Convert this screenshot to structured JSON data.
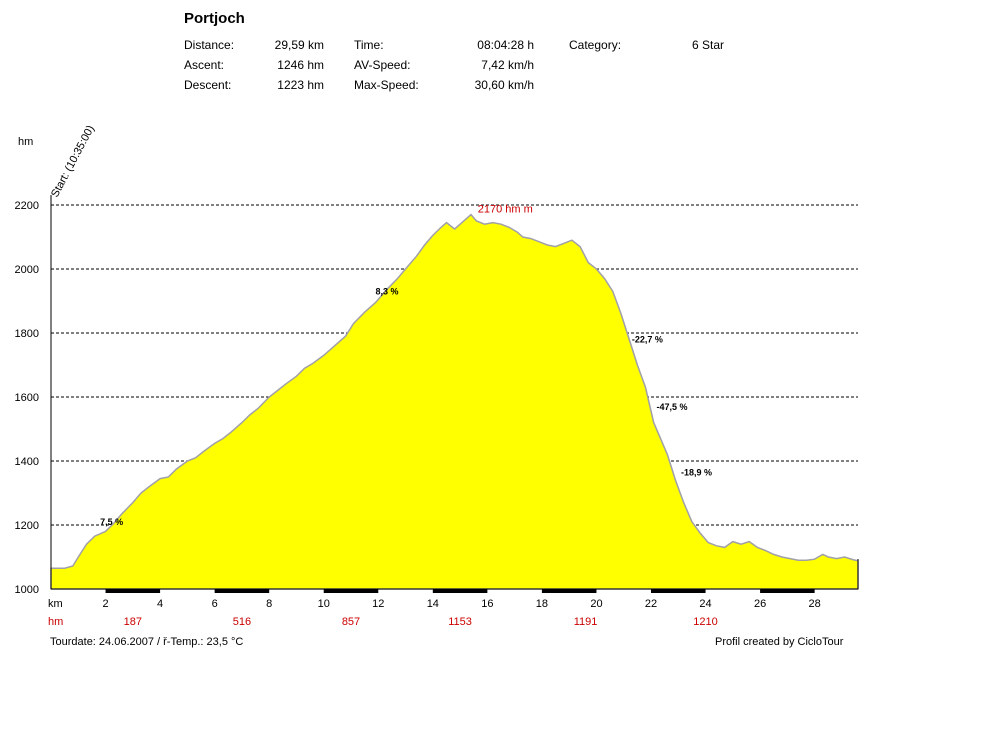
{
  "header": {
    "title": "Portjoch",
    "stats": [
      {
        "label": "Distance:",
        "value": "29,59 km"
      },
      {
        "label": "Ascent:",
        "value": "1246 hm"
      },
      {
        "label": "Descent:",
        "value": "1223 hm"
      },
      {
        "label": "Time:",
        "value": "08:04:28 h"
      },
      {
        "label": "AV-Speed:",
        "value": "7,42 km/h"
      },
      {
        "label": "Max-Speed:",
        "value": "30,60 km/h"
      },
      {
        "label": "Category:",
        "value": "6 Star"
      }
    ]
  },
  "footer": {
    "tourdate": "Tourdate: 24.06.2007  /  ř-Temp.: 23,5 °C",
    "credit": "Profil created by CicloTour"
  },
  "colors": {
    "fill": "#ffff00",
    "outline": "#a0a0a8",
    "grid": "#000000",
    "hm_red": "#cc0000"
  },
  "chart_data": {
    "type": "area",
    "ylabel": "hm",
    "xlabel": "km",
    "ylim": [
      1000,
      2200
    ],
    "xlim": [
      0,
      29.59
    ],
    "yticks": [
      1000,
      1200,
      1400,
      1600,
      1800,
      2000,
      2200
    ],
    "xticks": [
      2,
      4,
      6,
      8,
      10,
      12,
      14,
      16,
      18,
      20,
      22,
      24,
      26,
      28
    ],
    "grid": true,
    "start_label": "Start: (10:35:00)",
    "max_label": "2170 hm m",
    "max_point": [
      15.3,
      2170
    ],
    "hm_row_label": "hm",
    "hm_row": [
      {
        "x": 3,
        "value": "187"
      },
      {
        "x": 7,
        "value": "516"
      },
      {
        "x": 11,
        "value": "857"
      },
      {
        "x": 15,
        "value": "1153"
      },
      {
        "x": 19.6,
        "value": "1191"
      },
      {
        "x": 24,
        "value": "1210"
      }
    ],
    "grades": [
      {
        "x": 1.8,
        "y": 1200,
        "label": "7,5 %"
      },
      {
        "x": 11.9,
        "y": 1920,
        "label": "8,3 %"
      },
      {
        "x": 21.3,
        "y": 1770,
        "label": "-22,7 %"
      },
      {
        "x": 22.2,
        "y": 1560,
        "label": "-47,5 %"
      },
      {
        "x": 23.1,
        "y": 1355,
        "label": "-18,9 %"
      }
    ],
    "x": [
      0,
      0.5,
      0.8,
      1.0,
      1.3,
      1.6,
      2.0,
      2.3,
      2.6,
      3.0,
      3.3,
      3.6,
      4.0,
      4.3,
      4.6,
      5.0,
      5.3,
      5.6,
      6.0,
      6.3,
      6.6,
      7.0,
      7.3,
      7.6,
      8.0,
      8.3,
      8.6,
      9.0,
      9.3,
      9.6,
      10.0,
      10.4,
      10.8,
      11.1,
      11.5,
      11.9,
      12.3,
      12.7,
      13.0,
      13.4,
      13.7,
      14.0,
      14.3,
      14.5,
      14.8,
      15.0,
      15.2,
      15.4,
      15.6,
      15.9,
      16.2,
      16.5,
      16.8,
      17.1,
      17.3,
      17.6,
      17.9,
      18.2,
      18.5,
      18.8,
      19.1,
      19.4,
      19.7,
      20.0,
      20.3,
      20.6,
      20.9,
      21.2,
      21.5,
      21.8,
      22.1,
      22.3,
      22.6,
      22.9,
      23.2,
      23.5,
      23.8,
      24.1,
      24.4,
      24.7,
      25.0,
      25.3,
      25.6,
      25.9,
      26.2,
      26.5,
      26.8,
      27.1,
      27.4,
      27.7,
      28.0,
      28.3,
      28.5,
      28.8,
      29.1,
      29.4,
      29.59
    ],
    "y": [
      1065,
      1065,
      1072,
      1100,
      1140,
      1165,
      1180,
      1205,
      1235,
      1270,
      1300,
      1320,
      1345,
      1350,
      1375,
      1400,
      1410,
      1430,
      1455,
      1470,
      1490,
      1520,
      1545,
      1565,
      1600,
      1620,
      1640,
      1665,
      1690,
      1705,
      1730,
      1760,
      1790,
      1830,
      1865,
      1895,
      1935,
      1970,
      2000,
      2040,
      2075,
      2105,
      2130,
      2145,
      2125,
      2140,
      2155,
      2170,
      2150,
      2140,
      2145,
      2140,
      2130,
      2115,
      2100,
      2095,
      2085,
      2075,
      2070,
      2080,
      2090,
      2070,
      2020,
      2000,
      1970,
      1930,
      1860,
      1780,
      1700,
      1630,
      1520,
      1480,
      1420,
      1340,
      1270,
      1210,
      1175,
      1145,
      1135,
      1130,
      1148,
      1140,
      1148,
      1130,
      1120,
      1108,
      1100,
      1095,
      1090,
      1090,
      1093,
      1108,
      1100,
      1095,
      1100,
      1092,
      1088
    ]
  }
}
